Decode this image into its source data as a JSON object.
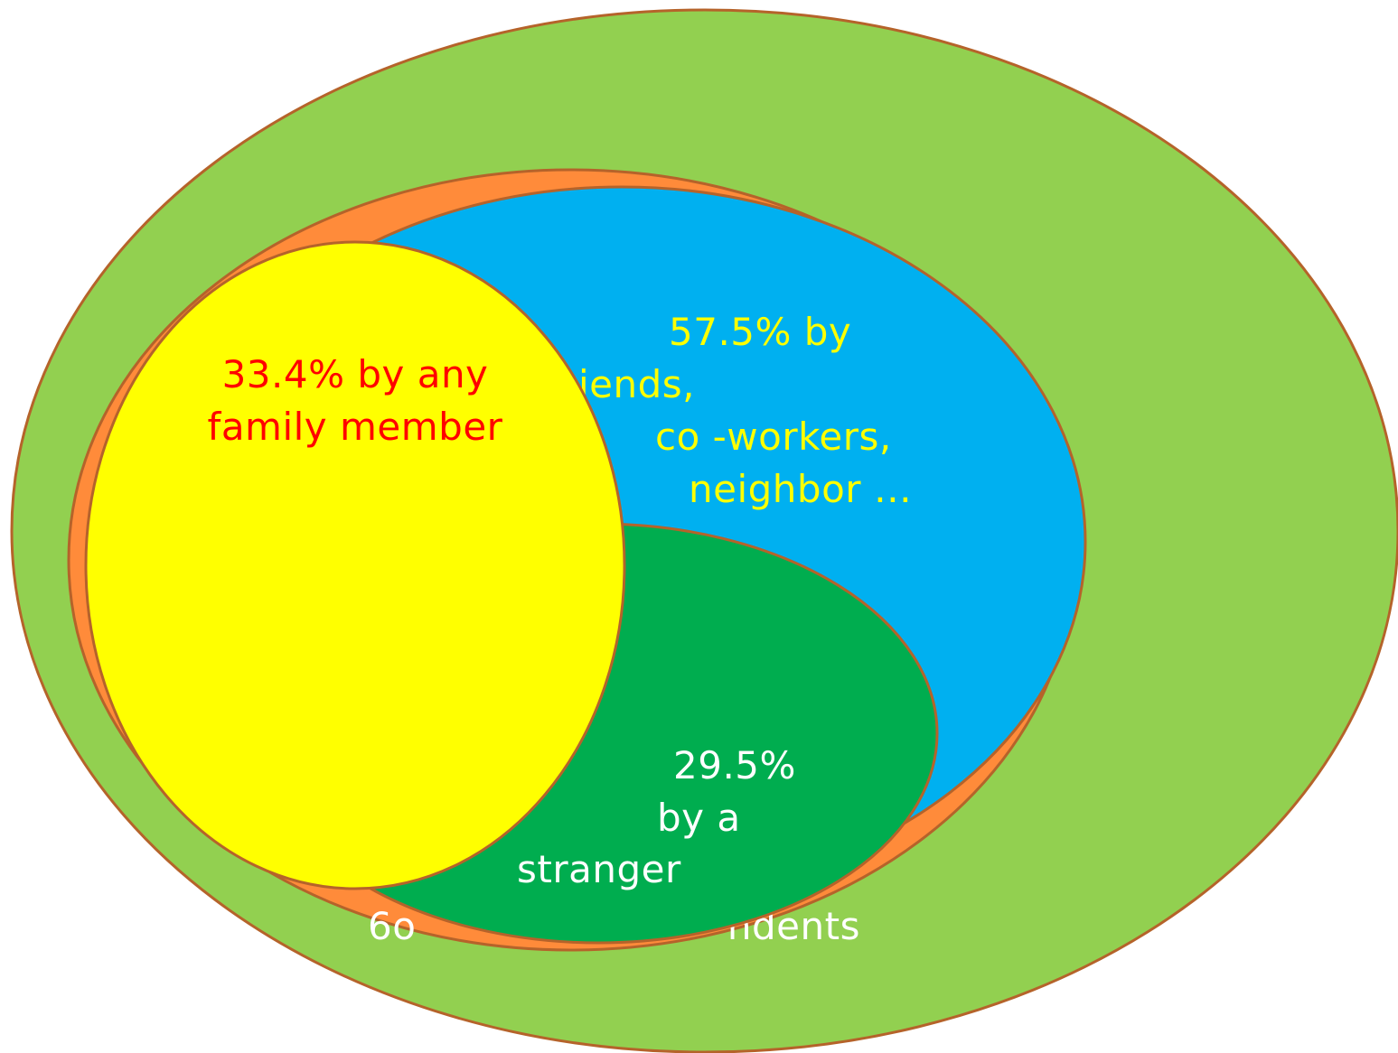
{
  "diagram": {
    "colors": {
      "outer": "#92d050",
      "orange": "#ff8b3a",
      "blue": "#00b0f0",
      "green": "#00ad4f",
      "yellow": "#ffff00",
      "outline": "#b5632a",
      "text_red": "#ff0000",
      "text_yellow": "#ffff00",
      "text_white": "#ffffff"
    },
    "family": {
      "line1": "33.4% by any",
      "line2": "family member"
    },
    "acquaintance": {
      "line1": "57.5% by",
      "line2": "iends,",
      "line3": "co -workers,",
      "line4": "neighbor …"
    },
    "stranger": {
      "line1": "29.5%",
      "line2": "by a",
      "line3": "stranger"
    },
    "hidden_label": {
      "left": "6o",
      "right": "ndents"
    }
  }
}
